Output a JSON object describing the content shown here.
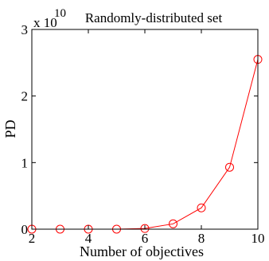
{
  "chart_data": {
    "type": "line",
    "title": "Randomly-distributed set",
    "xlabel": "Number of objectives",
    "ylabel": "PD",
    "y_multiplier_label": {
      "base": "x 10",
      "exponent": "10"
    },
    "xlim": [
      2,
      10
    ],
    "ylim": [
      0,
      3
    ],
    "x_ticks": [
      "2",
      "4",
      "6",
      "8",
      "10"
    ],
    "y_ticks": [
      "0",
      "1",
      "2",
      "3"
    ],
    "grid": false,
    "series": [
      {
        "color": "#ff0000",
        "marker": "circle",
        "x": [
          2,
          3,
          4,
          5,
          6,
          7,
          8,
          9,
          10
        ],
        "y": [
          0.0,
          0.0,
          0.0,
          0.0,
          0.01,
          0.08,
          0.32,
          0.93,
          2.55
        ]
      }
    ]
  }
}
